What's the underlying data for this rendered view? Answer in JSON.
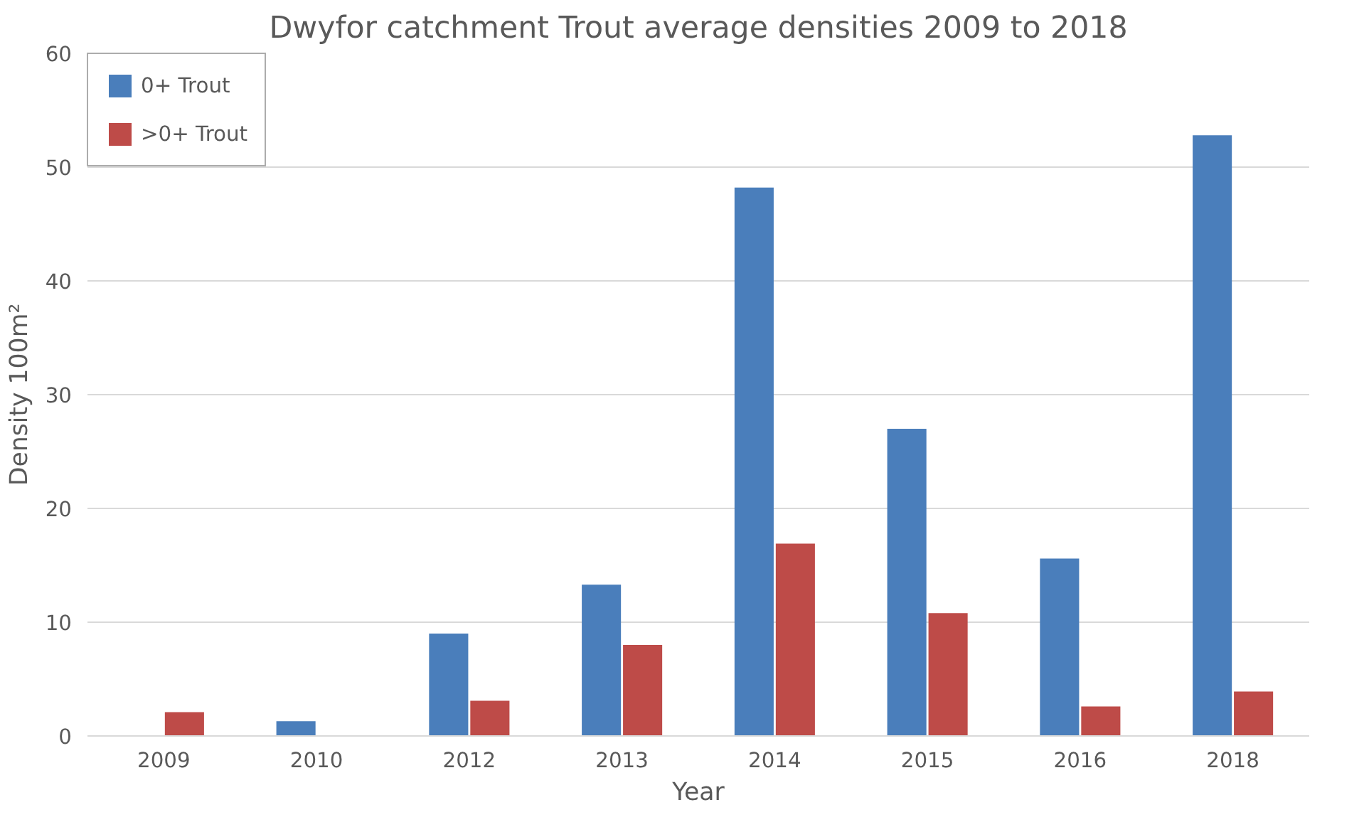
{
  "chart_data": {
    "type": "bar",
    "title": "Dwyfor catchment Trout average densities 2009 to 2018",
    "xlabel": "Year",
    "ylabel": "Density 100m²",
    "categories": [
      "2009",
      "2010",
      "2012",
      "2013",
      "2014",
      "2015",
      "2016",
      "2018"
    ],
    "series": [
      {
        "name": "0+ Trout",
        "color": "#4a7ebb",
        "values": [
          0,
          1.3,
          9,
          13.3,
          48.2,
          27,
          15.6,
          52.8
        ]
      },
      {
        "name": ">0+ Trout",
        "color": "#be4b48",
        "values": [
          2.1,
          0,
          3.1,
          8,
          16.9,
          10.8,
          2.6,
          3.9
        ]
      }
    ],
    "ylim": [
      0,
      60
    ],
    "yticks": [
      0,
      10,
      20,
      30,
      40,
      50,
      60
    ],
    "grid": "y",
    "legend": "top left"
  }
}
